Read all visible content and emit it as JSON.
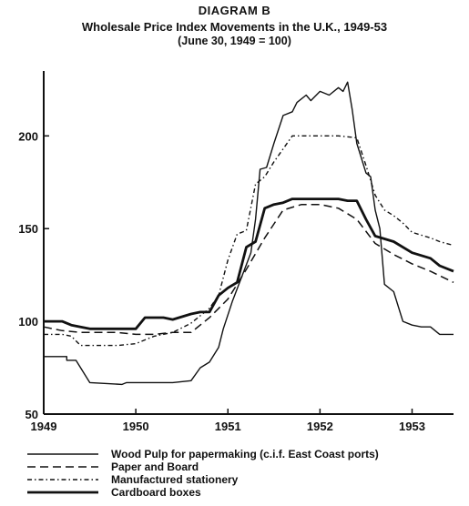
{
  "header": {
    "label": "DIAGRAM B",
    "title": "Wholesale Price Index Movements in the U.K., 1949-53",
    "subtitle": "(June 30, 1949 = 100)"
  },
  "chart_data": {
    "type": "line",
    "title": "Wholesale Price Index Movements in the U.K., 1949-53",
    "subtitle": "(June 30, 1949 = 100)",
    "xlabel": "",
    "ylabel": "",
    "xlim": [
      1949.0,
      1953.45
    ],
    "ylim": [
      50,
      235
    ],
    "yticks": [
      50,
      100,
      150,
      200
    ],
    "xticks": [
      1949,
      1950,
      1951,
      1952,
      1953
    ],
    "xtick_labels": [
      "1949",
      "1950",
      "1951",
      "1952",
      "1953"
    ],
    "grid": false,
    "legend_placement": "bottom",
    "series": [
      {
        "name": "Wood Pulp for papermaking (c.i.f. East Coast ports)",
        "style": "thin-solid",
        "x": [
          1949.0,
          1949.25,
          1949.25,
          1949.35,
          1949.5,
          1949.85,
          1949.9,
          1950.0,
          1950.1,
          1950.2,
          1950.3,
          1950.4,
          1950.6,
          1950.7,
          1950.8,
          1950.9,
          1950.95,
          1951.05,
          1951.15,
          1951.25,
          1951.3,
          1951.35,
          1951.42,
          1951.5,
          1951.6,
          1951.7,
          1951.75,
          1951.85,
          1951.9,
          1952.0,
          1952.1,
          1952.2,
          1952.25,
          1952.3,
          1952.35,
          1952.4,
          1952.5,
          1952.55,
          1952.6,
          1952.65,
          1952.7,
          1952.8,
          1952.9,
          1953.0,
          1953.1,
          1953.2,
          1953.3,
          1953.45
        ],
        "y": [
          81,
          81,
          79,
          79,
          67,
          66,
          67,
          67,
          67,
          67,
          67,
          67,
          68,
          75,
          78,
          86,
          96,
          111,
          124,
          137,
          155,
          182,
          183,
          196,
          211,
          213,
          218,
          222,
          219,
          224,
          222,
          226,
          224,
          229,
          214,
          196,
          180,
          178,
          160,
          150,
          120,
          116,
          100,
          98,
          97,
          97,
          93,
          93
        ]
      },
      {
        "name": "Paper and Board",
        "style": "long-dash",
        "x": [
          1949.0,
          1949.2,
          1949.4,
          1949.6,
          1949.8,
          1950.0,
          1950.2,
          1950.4,
          1950.6,
          1950.8,
          1951.0,
          1951.2,
          1951.4,
          1951.6,
          1951.8,
          1952.0,
          1952.2,
          1952.4,
          1952.6,
          1952.8,
          1953.0,
          1953.2,
          1953.45
        ],
        "y": [
          97,
          95,
          94,
          94,
          94,
          93,
          93,
          94,
          94,
          102,
          112,
          128,
          145,
          160,
          163,
          163,
          161,
          155,
          142,
          136,
          131,
          127,
          121
        ]
      },
      {
        "name": "Manufactured stationery",
        "style": "dash-dot",
        "x": [
          1949.0,
          1949.1,
          1949.2,
          1949.3,
          1949.4,
          1949.6,
          1949.8,
          1950.0,
          1950.2,
          1950.4,
          1950.6,
          1950.8,
          1950.9,
          1951.0,
          1951.1,
          1951.2,
          1951.3,
          1951.4,
          1951.5,
          1951.6,
          1951.7,
          1951.8,
          1952.0,
          1952.2,
          1952.4,
          1952.5,
          1952.6,
          1952.7,
          1952.8,
          1952.9,
          1953.0,
          1953.2,
          1953.3,
          1953.45
        ],
        "y": [
          93,
          93,
          93,
          92,
          87,
          87,
          87,
          88,
          92,
          94,
          99,
          107,
          114,
          133,
          147,
          149,
          174,
          178,
          186,
          193,
          200,
          200,
          200,
          200,
          199,
          184,
          168,
          160,
          157,
          153,
          148,
          145,
          143,
          141
        ]
      },
      {
        "name": "Cardboard boxes",
        "style": "thick-solid",
        "x": [
          1949.0,
          1949.2,
          1949.3,
          1949.4,
          1949.5,
          1949.6,
          1949.7,
          1949.75,
          1950.0,
          1950.1,
          1950.2,
          1950.3,
          1950.4,
          1950.6,
          1950.7,
          1950.8,
          1950.9,
          1951.0,
          1951.1,
          1951.2,
          1951.3,
          1951.4,
          1951.5,
          1951.6,
          1951.7,
          1951.8,
          1952.0,
          1952.2,
          1952.3,
          1952.4,
          1952.5,
          1952.6,
          1952.8,
          1953.0,
          1953.2,
          1953.3,
          1953.45
        ],
        "y": [
          100,
          100,
          98,
          97,
          96,
          96,
          96,
          96,
          96,
          102,
          102,
          102,
          101,
          104,
          105,
          105,
          114,
          118,
          121,
          140,
          143,
          161,
          163,
          164,
          166,
          166,
          166,
          166,
          165,
          165,
          155,
          146,
          143,
          137,
          134,
          130,
          127
        ]
      }
    ]
  }
}
